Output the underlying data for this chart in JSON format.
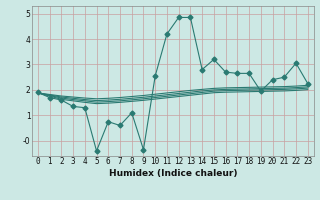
{
  "xlabel": "Humidex (Indice chaleur)",
  "bg_color": "#cce8e4",
  "grid_color_major": "#c8a0a0",
  "grid_color_minor": "#ddc0c0",
  "line_color": "#2a7a72",
  "x": [
    0,
    1,
    2,
    3,
    4,
    5,
    6,
    7,
    8,
    9,
    10,
    11,
    12,
    13,
    14,
    15,
    16,
    17,
    18,
    19,
    20,
    21,
    22,
    23
  ],
  "ylim": [
    -0.6,
    5.3
  ],
  "yticks": [
    0,
    1,
    2,
    3,
    4,
    5
  ],
  "ytick_labels": [
    "-0",
    "1",
    "2",
    "3",
    "4",
    "5"
  ],
  "lines": [
    [
      1.9,
      1.7,
      1.6,
      1.35,
      1.3,
      -0.4,
      0.75,
      0.6,
      1.1,
      -0.35,
      2.55,
      4.2,
      4.85,
      4.85,
      2.8,
      3.2,
      2.7,
      2.65,
      2.65,
      1.95,
      2.4,
      2.5,
      3.05,
      2.25
    ],
    [
      1.88,
      1.82,
      1.76,
      1.72,
      1.68,
      1.65,
      1.67,
      1.7,
      1.74,
      1.78,
      1.83,
      1.88,
      1.93,
      1.98,
      2.02,
      2.06,
      2.08,
      2.09,
      2.1,
      2.11,
      2.12,
      2.13,
      2.15,
      2.18
    ],
    [
      1.88,
      1.8,
      1.72,
      1.67,
      1.62,
      1.58,
      1.6,
      1.63,
      1.67,
      1.71,
      1.76,
      1.81,
      1.86,
      1.91,
      1.96,
      2.0,
      2.02,
      2.03,
      2.04,
      2.05,
      2.06,
      2.07,
      2.09,
      2.12
    ],
    [
      1.88,
      1.78,
      1.68,
      1.62,
      1.57,
      1.52,
      1.54,
      1.57,
      1.61,
      1.65,
      1.7,
      1.75,
      1.8,
      1.85,
      1.9,
      1.95,
      1.97,
      1.98,
      1.99,
      2.0,
      2.01,
      2.02,
      2.04,
      2.07
    ],
    [
      1.88,
      1.76,
      1.63,
      1.57,
      1.51,
      1.46,
      1.48,
      1.51,
      1.55,
      1.59,
      1.64,
      1.69,
      1.74,
      1.79,
      1.84,
      1.89,
      1.91,
      1.92,
      1.93,
      1.94,
      1.95,
      1.96,
      1.98,
      2.01
    ]
  ],
  "marker": "D",
  "marker_size": 2.5,
  "line_width": 0.8
}
